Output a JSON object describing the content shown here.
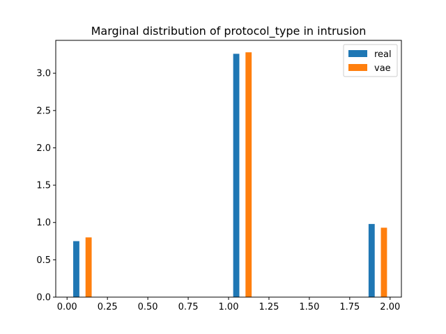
{
  "chart_data": {
    "type": "bar",
    "title": "Marginal distribution of protocol_type in intrusion",
    "xlabel": "",
    "ylabel": "",
    "xlim": [
      -0.07,
      2.07
    ],
    "ylim": [
      0,
      3.44
    ],
    "xticks": [
      0.0,
      0.25,
      0.5,
      0.75,
      1.0,
      1.25,
      1.5,
      1.75,
      2.0
    ],
    "xtick_labels": [
      "0.00",
      "0.25",
      "0.50",
      "0.75",
      "1.00",
      "1.25",
      "1.50",
      "1.75",
      "2.00"
    ],
    "yticks": [
      0.0,
      0.5,
      1.0,
      1.5,
      2.0,
      2.5,
      3.0
    ],
    "ytick_labels": [
      "0.0",
      "0.5",
      "1.0",
      "1.5",
      "2.0",
      "2.5",
      "3.0"
    ],
    "bar_width": 0.0381,
    "grid": false,
    "legend_position": "top-right",
    "series": [
      {
        "name": "real",
        "color": "#1f77b4",
        "bars": [
          {
            "x": 0.0381,
            "value": 0.75
          },
          {
            "x": 1.0286,
            "value": 3.26
          },
          {
            "x": 1.8667,
            "value": 0.98
          }
        ]
      },
      {
        "name": "vae",
        "color": "#ff7f0e",
        "bars": [
          {
            "x": 0.1143,
            "value": 0.8
          },
          {
            "x": 1.1048,
            "value": 3.28
          },
          {
            "x": 1.9429,
            "value": 0.93
          }
        ]
      }
    ]
  }
}
